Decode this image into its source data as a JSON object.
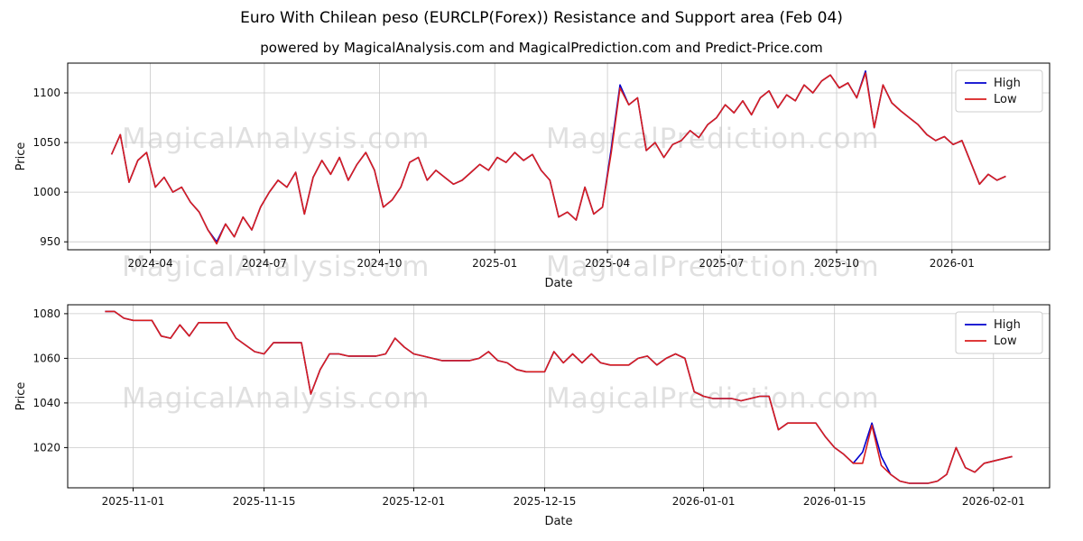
{
  "title": "Euro With Chilean peso (EURCLP(Forex)) Resistance and Support area (Feb 04)",
  "subtitle": "powered by MagicalAnalysis.com and MagicalPrediction.com and Predict-Price.com",
  "watermarks": {
    "left": "MagicalAnalysis.com",
    "right": "MagicalPrediction.com"
  },
  "colors": {
    "high": "#0000cd",
    "low": "#d91e1e",
    "grid": "#c8c8c8",
    "spine": "#000000"
  },
  "chart_data": [
    {
      "type": "line",
      "ylabel": "Price",
      "xlabel": "Date",
      "ylim": [
        942,
        1130
      ],
      "yticks": [
        950,
        1000,
        1050,
        1100
      ],
      "xlim": [
        -5,
        107
      ],
      "xticks": [
        {
          "pos": 4.43,
          "label": "2024-04"
        },
        {
          "pos": 17.43,
          "label": "2024-07"
        },
        {
          "pos": 30.57,
          "label": "2024-10"
        },
        {
          "pos": 43.71,
          "label": "2025-01"
        },
        {
          "pos": 56.57,
          "label": "2025-04"
        },
        {
          "pos": 69.57,
          "label": "2025-07"
        },
        {
          "pos": 82.71,
          "label": "2025-10"
        },
        {
          "pos": 95.86,
          "label": "2026-01"
        }
      ],
      "legend_position": "upper right",
      "series": [
        {
          "name": "High",
          "color_key": "high",
          "values": [
            1038,
            1058,
            1010,
            1032,
            1040,
            1005,
            1015,
            1000,
            1005,
            990,
            980,
            962,
            950,
            968,
            955,
            975,
            962,
            985,
            1000,
            1012,
            1005,
            1020,
            978,
            1015,
            1032,
            1018,
            1035,
            1012,
            1028,
            1040,
            1022,
            985,
            992,
            1005,
            1030,
            1035,
            1012,
            1022,
            1015,
            1008,
            1012,
            1020,
            1028,
            1022,
            1035,
            1030,
            1040,
            1032,
            1038,
            1022,
            1012,
            975,
            980,
            972,
            1005,
            978,
            985,
            1044,
            1108,
            1088,
            1095,
            1042,
            1050,
            1035,
            1048,
            1052,
            1062,
            1055,
            1068,
            1075,
            1088,
            1080,
            1092,
            1078,
            1095,
            1102,
            1085,
            1098,
            1092,
            1108,
            1100,
            1112,
            1118,
            1105,
            1110,
            1095,
            1122,
            1065,
            1108,
            1090,
            1082,
            1075,
            1068,
            1058,
            1052,
            1056,
            1048,
            1052,
            1030,
            1008,
            1018,
            1012,
            1016
          ]
        },
        {
          "name": "Low",
          "color_key": "low",
          "values": [
            1038,
            1058,
            1010,
            1032,
            1040,
            1005,
            1015,
            1000,
            1005,
            990,
            980,
            962,
            948,
            968,
            955,
            975,
            962,
            985,
            1000,
            1012,
            1005,
            1020,
            978,
            1015,
            1032,
            1018,
            1035,
            1012,
            1028,
            1040,
            1022,
            985,
            992,
            1005,
            1030,
            1035,
            1012,
            1022,
            1015,
            1008,
            1012,
            1020,
            1028,
            1022,
            1035,
            1030,
            1040,
            1032,
            1038,
            1022,
            1012,
            975,
            980,
            972,
            1005,
            978,
            985,
            1040,
            1105,
            1088,
            1095,
            1042,
            1050,
            1035,
            1048,
            1052,
            1062,
            1055,
            1068,
            1075,
            1088,
            1080,
            1092,
            1078,
            1095,
            1102,
            1085,
            1098,
            1092,
            1108,
            1100,
            1112,
            1118,
            1105,
            1110,
            1095,
            1120,
            1065,
            1108,
            1090,
            1082,
            1075,
            1068,
            1058,
            1052,
            1056,
            1048,
            1052,
            1030,
            1008,
            1018,
            1012,
            1016
          ]
        }
      ]
    },
    {
      "type": "line",
      "ylabel": "Price",
      "xlabel": "Date",
      "ylim": [
        1002,
        1084
      ],
      "yticks": [
        1020,
        1040,
        1060,
        1080
      ],
      "xlim": [
        -4,
        101
      ],
      "xticks": [
        {
          "pos": 3,
          "label": "2025-11-01"
        },
        {
          "pos": 17,
          "label": "2025-11-15"
        },
        {
          "pos": 33,
          "label": "2025-12-01"
        },
        {
          "pos": 47,
          "label": "2025-12-15"
        },
        {
          "pos": 64,
          "label": "2026-01-01"
        },
        {
          "pos": 78,
          "label": "2026-01-15"
        },
        {
          "pos": 95,
          "label": "2026-02-01"
        }
      ],
      "legend_position": "upper right",
      "series": [
        {
          "name": "High",
          "color_key": "high",
          "values": [
            1081,
            1081,
            1078,
            1077,
            1077,
            1077,
            1070,
            1069,
            1075,
            1070,
            1076,
            1076,
            1076,
            1076,
            1069,
            1066,
            1063,
            1062,
            1067,
            1067,
            1067,
            1067,
            1044,
            1055,
            1062,
            1062,
            1061,
            1061,
            1061,
            1061,
            1062,
            1069,
            1065,
            1062,
            1061,
            1060,
            1059,
            1059,
            1059,
            1059,
            1060,
            1063,
            1059,
            1058,
            1055,
            1054,
            1054,
            1054,
            1063,
            1058,
            1062,
            1058,
            1062,
            1058,
            1057,
            1057,
            1057,
            1060,
            1061,
            1057,
            1060,
            1062,
            1060,
            1045,
            1043,
            1042,
            1042,
            1042,
            1041,
            1042,
            1043,
            1043,
            1028,
            1031,
            1031,
            1031,
            1031,
            1025,
            1020,
            1017,
            1013,
            1018,
            1031,
            1016,
            1008,
            1005,
            1004,
            1004,
            1004,
            1005,
            1008,
            1020,
            1011,
            1009,
            1013,
            1014,
            1015,
            1016
          ]
        },
        {
          "name": "Low",
          "color_key": "low",
          "values": [
            1081,
            1081,
            1078,
            1077,
            1077,
            1077,
            1070,
            1069,
            1075,
            1070,
            1076,
            1076,
            1076,
            1076,
            1069,
            1066,
            1063,
            1062,
            1067,
            1067,
            1067,
            1067,
            1044,
            1055,
            1062,
            1062,
            1061,
            1061,
            1061,
            1061,
            1062,
            1069,
            1065,
            1062,
            1061,
            1060,
            1059,
            1059,
            1059,
            1059,
            1060,
            1063,
            1059,
            1058,
            1055,
            1054,
            1054,
            1054,
            1063,
            1058,
            1062,
            1058,
            1062,
            1058,
            1057,
            1057,
            1057,
            1060,
            1061,
            1057,
            1060,
            1062,
            1060,
            1045,
            1043,
            1042,
            1042,
            1042,
            1041,
            1042,
            1043,
            1043,
            1028,
            1031,
            1031,
            1031,
            1031,
            1025,
            1020,
            1017,
            1013,
            1013,
            1030,
            1012,
            1008,
            1005,
            1004,
            1004,
            1004,
            1005,
            1008,
            1020,
            1011,
            1009,
            1013,
            1014,
            1015,
            1016
          ]
        }
      ]
    }
  ]
}
